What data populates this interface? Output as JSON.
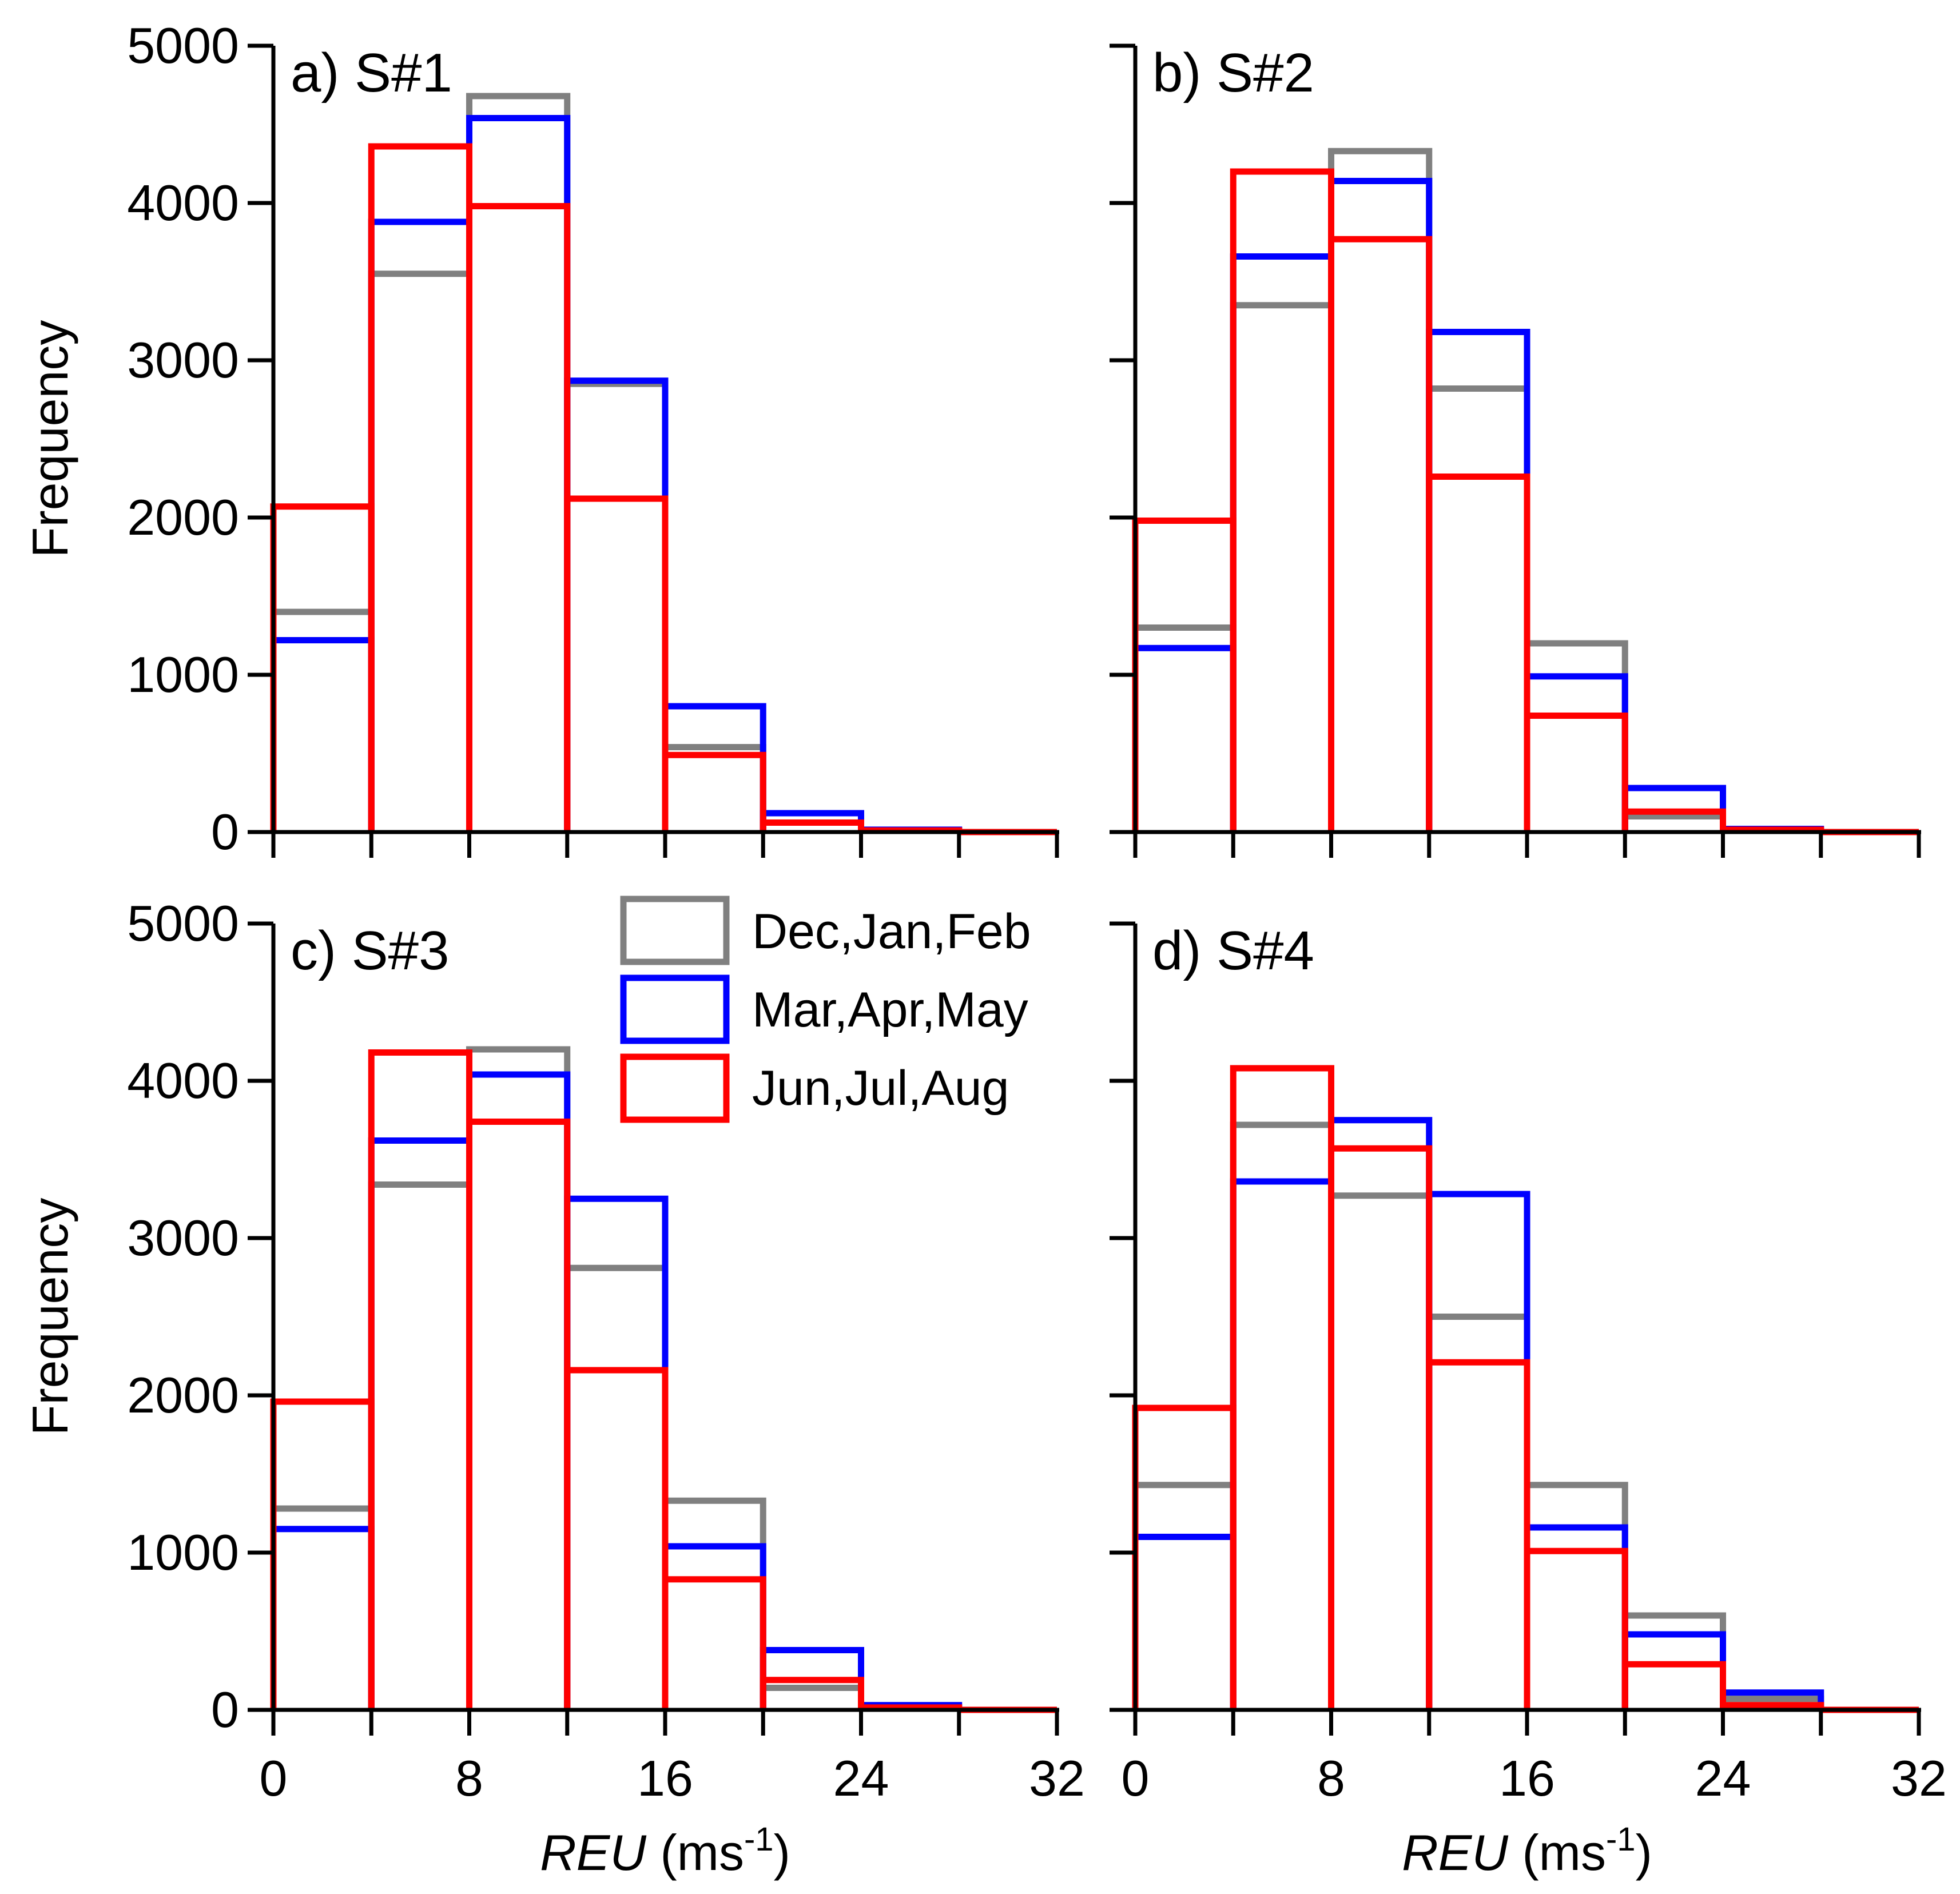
{
  "colors": {
    "DJF": "#808080",
    "MAM": "#0000ff",
    "JJA": "#ff0000",
    "axis": "#000000"
  },
  "legend": [
    {
      "label": "Dec,Jan,Feb",
      "color": "#808080"
    },
    {
      "label": "Mar,Apr,May",
      "color": "#0000ff"
    },
    {
      "label": "Jun,Jul,Aug",
      "color": "#ff0000"
    }
  ],
  "axis_titles": {
    "y": "Frequency",
    "x_italic": "REU",
    "x_unit_open": " (ms",
    "x_unit_sup": "-1",
    "x_unit_close": ")"
  },
  "chart_data": [
    {
      "type": "bar",
      "title": "a) S#1",
      "bin_edges": [
        0,
        4,
        8,
        12,
        16,
        20,
        24,
        28,
        32
      ],
      "xticks": [
        0,
        8,
        16,
        24,
        32
      ],
      "yticks": [
        0,
        1000,
        2000,
        3000,
        4000,
        5000
      ],
      "xlim": [
        0,
        32
      ],
      "ylim": [
        0,
        5000
      ],
      "series": [
        {
          "name": "Dec,Jan,Feb",
          "key": "DJF",
          "values": [
            1400,
            3550,
            4680,
            2850,
            540,
            60,
            10,
            0
          ]
        },
        {
          "name": "Mar,Apr,May",
          "key": "MAM",
          "values": [
            1220,
            3880,
            4540,
            2870,
            800,
            120,
            15,
            0
          ]
        },
        {
          "name": "Jun,Jul,Aug",
          "key": "JJA",
          "values": [
            2070,
            4360,
            3980,
            2120,
            490,
            60,
            10,
            0
          ]
        }
      ]
    },
    {
      "type": "bar",
      "title": "b) S#2",
      "bin_edges": [
        0,
        4,
        8,
        12,
        16,
        20,
        24,
        28,
        32
      ],
      "xticks": [
        0,
        8,
        16,
        24,
        32
      ],
      "yticks": [
        0,
        1000,
        2000,
        3000,
        4000,
        5000
      ],
      "xlim": [
        0,
        32
      ],
      "ylim": [
        0,
        5000
      ],
      "series": [
        {
          "name": "Dec,Jan,Feb",
          "key": "DJF",
          "values": [
            1300,
            3350,
            4330,
            2820,
            1200,
            100,
            10,
            0
          ]
        },
        {
          "name": "Mar,Apr,May",
          "key": "MAM",
          "values": [
            1170,
            3660,
            4140,
            3180,
            990,
            280,
            20,
            0
          ]
        },
        {
          "name": "Jun,Jul,Aug",
          "key": "JJA",
          "values": [
            1980,
            4200,
            3770,
            2260,
            740,
            130,
            15,
            0
          ]
        }
      ]
    },
    {
      "type": "bar",
      "title": "c) S#3",
      "bin_edges": [
        0,
        4,
        8,
        12,
        16,
        20,
        24,
        28,
        32
      ],
      "xticks": [
        0,
        8,
        16,
        24,
        32
      ],
      "yticks": [
        0,
        1000,
        2000,
        3000,
        4000,
        5000
      ],
      "xlim": [
        0,
        32
      ],
      "ylim": [
        0,
        5000
      ],
      "series": [
        {
          "name": "Dec,Jan,Feb",
          "key": "DJF",
          "values": [
            1280,
            3340,
            4200,
            2810,
            1330,
            140,
            15,
            0
          ]
        },
        {
          "name": "Mar,Apr,May",
          "key": "MAM",
          "values": [
            1150,
            3620,
            4040,
            3250,
            1040,
            380,
            30,
            0
          ]
        },
        {
          "name": "Jun,Jul,Aug",
          "key": "JJA",
          "values": [
            1960,
            4180,
            3740,
            2160,
            830,
            190,
            15,
            0
          ]
        }
      ]
    },
    {
      "type": "bar",
      "title": "d) S#4",
      "bin_edges": [
        0,
        4,
        8,
        12,
        16,
        20,
        24,
        28,
        32
      ],
      "xticks": [
        0,
        8,
        16,
        24,
        32
      ],
      "yticks": [
        0,
        1000,
        2000,
        3000,
        4000,
        5000
      ],
      "xlim": [
        0,
        32
      ],
      "ylim": [
        0,
        5000
      ],
      "series": [
        {
          "name": "Dec,Jan,Feb",
          "key": "DJF",
          "values": [
            1430,
            3720,
            3270,
            2500,
            1430,
            600,
            70,
            0
          ]
        },
        {
          "name": "Mar,Apr,May",
          "key": "MAM",
          "values": [
            1100,
            3360,
            3750,
            3280,
            1160,
            480,
            110,
            0
          ]
        },
        {
          "name": "Jun,Jul,Aug",
          "key": "JJA",
          "values": [
            1920,
            4080,
            3570,
            2210,
            1010,
            290,
            30,
            0
          ]
        }
      ]
    }
  ]
}
